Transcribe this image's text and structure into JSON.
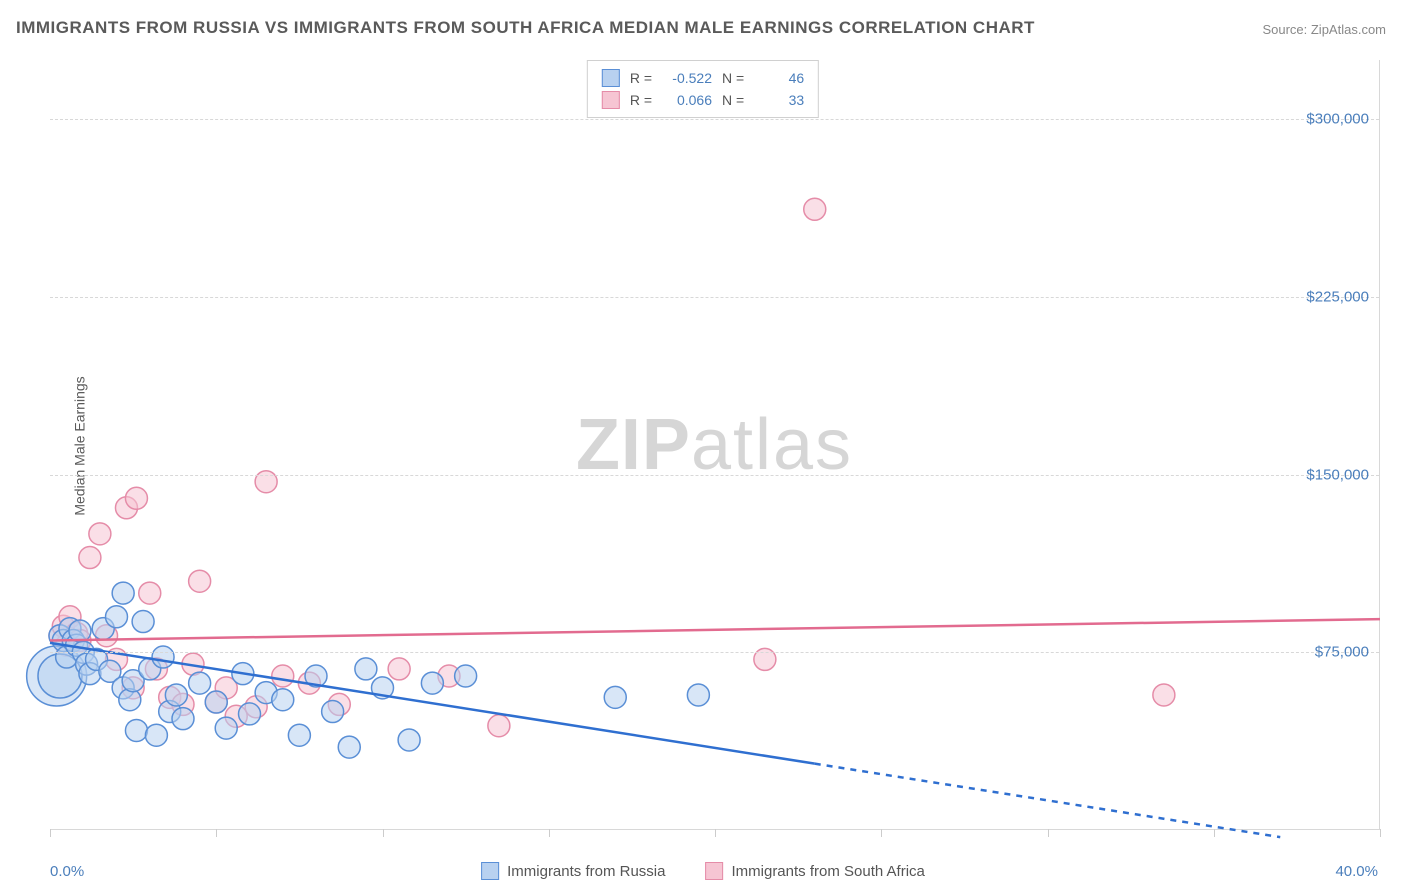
{
  "title": "IMMIGRANTS FROM RUSSIA VS IMMIGRANTS FROM SOUTH AFRICA MEDIAN MALE EARNINGS CORRELATION CHART",
  "source": "Source: ZipAtlas.com",
  "y_axis_title": "Median Male Earnings",
  "x_axis": {
    "min_label": "0.0%",
    "max_label": "40.0%",
    "min": 0,
    "max": 40,
    "tick_positions": [
      0,
      5,
      10,
      15,
      20,
      25,
      30,
      35,
      40
    ]
  },
  "y_axis": {
    "min": 0,
    "max": 325000,
    "ticks": [
      {
        "value": 75000,
        "label": "$75,000"
      },
      {
        "value": 150000,
        "label": "$150,000"
      },
      {
        "value": 225000,
        "label": "$225,000"
      },
      {
        "value": 300000,
        "label": "$300,000"
      }
    ]
  },
  "watermark": {
    "bold": "ZIP",
    "rest": "atlas"
  },
  "stat_box": {
    "rows": [
      {
        "swatch_fill": "#b8d1f0",
        "swatch_stroke": "#5a8fd6",
        "R_label": "R =",
        "R_value": "-0.522",
        "N_label": "N =",
        "N_value": "46"
      },
      {
        "swatch_fill": "#f6c5d3",
        "swatch_stroke": "#e58ca8",
        "R_label": "R =",
        "R_value": " 0.066",
        "N_label": "N =",
        "N_value": "33"
      }
    ]
  },
  "legend": {
    "items": [
      {
        "swatch_fill": "#b8d1f0",
        "swatch_stroke": "#5a8fd6",
        "label": "Immigrants from Russia"
      },
      {
        "swatch_fill": "#f6c5d3",
        "swatch_stroke": "#e58ca8",
        "label": "Immigrants from South Africa"
      }
    ]
  },
  "series": {
    "russia": {
      "color_fill": "#b8d1f0",
      "color_stroke": "#5a8fd6",
      "fill_opacity": 0.55,
      "default_r": 11,
      "points": [
        {
          "x": 0.2,
          "y": 65000,
          "r": 30
        },
        {
          "x": 0.3,
          "y": 65000,
          "r": 22
        },
        {
          "x": 0.3,
          "y": 82000
        },
        {
          "x": 0.4,
          "y": 80000
        },
        {
          "x": 0.5,
          "y": 73000
        },
        {
          "x": 0.6,
          "y": 85000
        },
        {
          "x": 0.7,
          "y": 80000
        },
        {
          "x": 0.8,
          "y": 78000
        },
        {
          "x": 0.9,
          "y": 84000
        },
        {
          "x": 1.0,
          "y": 75000
        },
        {
          "x": 1.1,
          "y": 70000
        },
        {
          "x": 1.2,
          "y": 66000
        },
        {
          "x": 1.4,
          "y": 72000
        },
        {
          "x": 1.6,
          "y": 85000
        },
        {
          "x": 1.8,
          "y": 67000
        },
        {
          "x": 2.0,
          "y": 90000
        },
        {
          "x": 2.2,
          "y": 60000
        },
        {
          "x": 2.2,
          "y": 100000
        },
        {
          "x": 2.4,
          "y": 55000
        },
        {
          "x": 2.5,
          "y": 63000
        },
        {
          "x": 2.6,
          "y": 42000
        },
        {
          "x": 2.8,
          "y": 88000
        },
        {
          "x": 3.0,
          "y": 68000
        },
        {
          "x": 3.2,
          "y": 40000
        },
        {
          "x": 3.4,
          "y": 73000
        },
        {
          "x": 3.6,
          "y": 50000
        },
        {
          "x": 3.8,
          "y": 57000
        },
        {
          "x": 4.0,
          "y": 47000
        },
        {
          "x": 4.5,
          "y": 62000
        },
        {
          "x": 5.0,
          "y": 54000
        },
        {
          "x": 5.3,
          "y": 43000
        },
        {
          "x": 5.8,
          "y": 66000
        },
        {
          "x": 6.0,
          "y": 49000
        },
        {
          "x": 6.5,
          "y": 58000
        },
        {
          "x": 7.0,
          "y": 55000
        },
        {
          "x": 7.5,
          "y": 40000
        },
        {
          "x": 8.0,
          "y": 65000
        },
        {
          "x": 8.5,
          "y": 50000
        },
        {
          "x": 9.0,
          "y": 35000
        },
        {
          "x": 9.5,
          "y": 68000
        },
        {
          "x": 10.0,
          "y": 60000
        },
        {
          "x": 10.8,
          "y": 38000
        },
        {
          "x": 11.5,
          "y": 62000
        },
        {
          "x": 12.5,
          "y": 65000
        },
        {
          "x": 17.0,
          "y": 56000
        },
        {
          "x": 19.5,
          "y": 57000
        }
      ],
      "regression": {
        "y_at_xmin": 79000,
        "solid_end_x": 23,
        "solid_end_y": 28000,
        "dashed_end_x": 37,
        "dashed_end_y": -3000,
        "stroke": "#2f6fd0",
        "width": 2.5
      }
    },
    "south_africa": {
      "color_fill": "#f6c5d3",
      "color_stroke": "#e58ca8",
      "fill_opacity": 0.55,
      "default_r": 11,
      "points": [
        {
          "x": 0.3,
          "y": 82000
        },
        {
          "x": 0.4,
          "y": 86000
        },
        {
          "x": 0.5,
          "y": 78000
        },
        {
          "x": 0.6,
          "y": 90000
        },
        {
          "x": 0.8,
          "y": 83000
        },
        {
          "x": 0.9,
          "y": 80000
        },
        {
          "x": 1.2,
          "y": 115000
        },
        {
          "x": 1.5,
          "y": 125000
        },
        {
          "x": 1.7,
          "y": 82000
        },
        {
          "x": 2.0,
          "y": 72000
        },
        {
          "x": 2.3,
          "y": 136000
        },
        {
          "x": 2.5,
          "y": 60000
        },
        {
          "x": 2.6,
          "y": 140000
        },
        {
          "x": 3.0,
          "y": 100000
        },
        {
          "x": 3.2,
          "y": 68000
        },
        {
          "x": 3.6,
          "y": 56000
        },
        {
          "x": 4.0,
          "y": 53000
        },
        {
          "x": 4.3,
          "y": 70000
        },
        {
          "x": 4.5,
          "y": 105000
        },
        {
          "x": 5.0,
          "y": 54000
        },
        {
          "x": 5.3,
          "y": 60000
        },
        {
          "x": 5.6,
          "y": 48000
        },
        {
          "x": 6.2,
          "y": 52000
        },
        {
          "x": 6.5,
          "y": 147000
        },
        {
          "x": 7.0,
          "y": 65000
        },
        {
          "x": 7.8,
          "y": 62000
        },
        {
          "x": 8.7,
          "y": 53000
        },
        {
          "x": 10.5,
          "y": 68000
        },
        {
          "x": 12.0,
          "y": 65000
        },
        {
          "x": 13.5,
          "y": 44000
        },
        {
          "x": 21.5,
          "y": 72000
        },
        {
          "x": 23.0,
          "y": 262000
        },
        {
          "x": 33.5,
          "y": 57000
        }
      ],
      "regression": {
        "y_at_xmin": 80000,
        "y_at_xmax": 89000,
        "stroke": "#e26b8f",
        "width": 2.5
      }
    }
  },
  "plot": {
    "background": "#ffffff",
    "grid_color": "#d8d8d8",
    "grid_dash": "4,4"
  }
}
